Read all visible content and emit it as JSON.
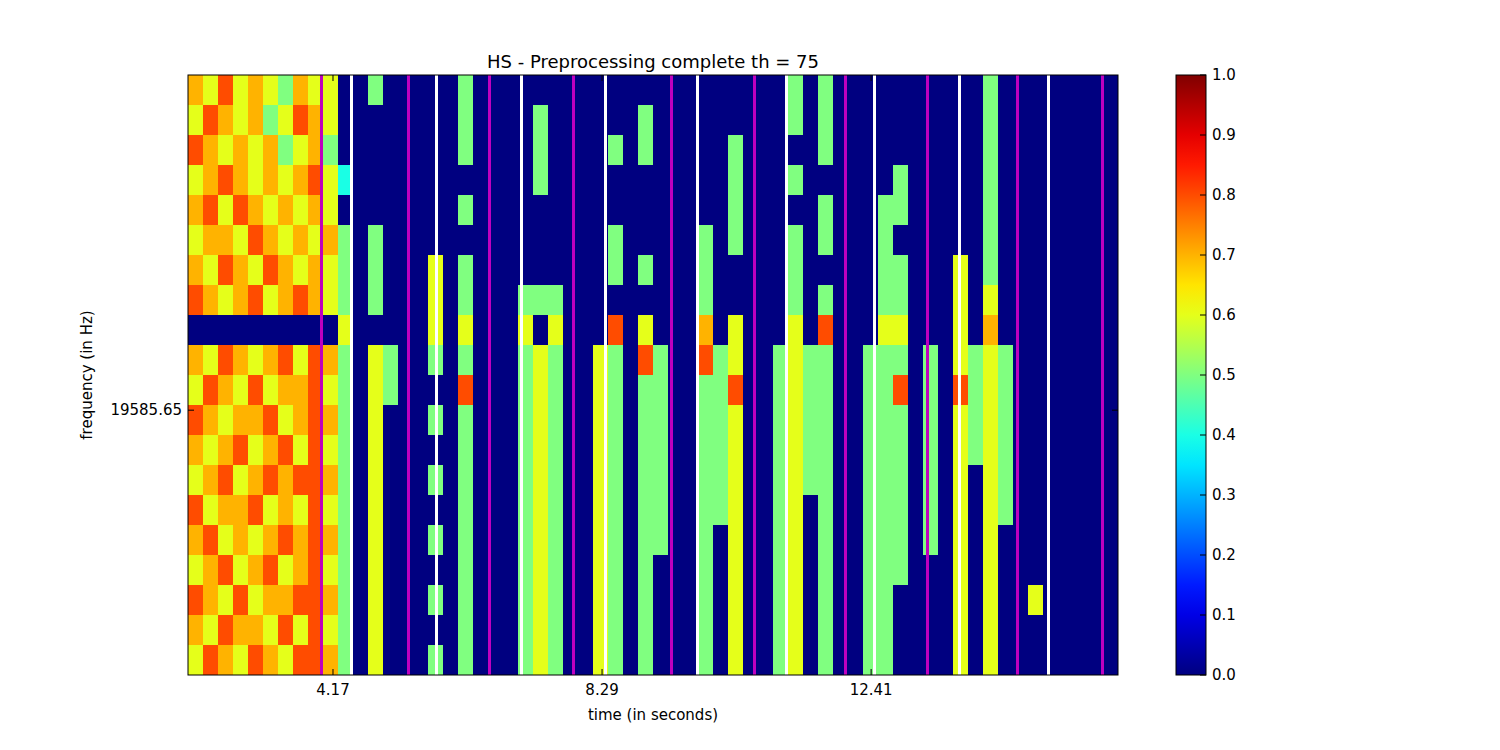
{
  "chart_data": {
    "type": "heatmap",
    "title": "HS - Preprocessing complete th = 75",
    "x_label": "time (in seconds)",
    "y_label": "frequency (in Hz)",
    "xlim": [
      1.95,
      16.19
    ],
    "xticks": [
      4.17,
      8.29,
      12.41
    ],
    "ylim": [
      18800,
      20580
    ],
    "yticks": [
      19585.65
    ],
    "colorbar": {
      "range": [
        0,
        1
      ],
      "ticks": [
        {
          "value": 0,
          "label": "0.0"
        },
        {
          "value": 0.1,
          "label": "0.1"
        },
        {
          "value": 0.2,
          "label": "0.2"
        },
        {
          "value": 0.3,
          "label": "0.3"
        },
        {
          "value": 0.4,
          "label": "0.4"
        },
        {
          "value": 0.5,
          "label": "0.5"
        },
        {
          "value": 0.6,
          "label": "0.6"
        },
        {
          "value": 0.7,
          "label": "0.7"
        },
        {
          "value": 0.8,
          "label": "0.8"
        },
        {
          "value": 0.9,
          "label": "0.9"
        },
        {
          "value": 1,
          "label": "1.0"
        }
      ]
    },
    "vlines": [
      {
        "color": "#ffffff",
        "x": [
          4.46,
          5.76,
          7.05,
          8.34,
          9.75,
          11.12,
          12.46,
          13.77,
          15.12
        ]
      },
      {
        "color": "#bf00bf",
        "x": [
          3.99,
          5.32,
          6.56,
          7.85,
          9.35,
          10.63,
          12.01,
          13.27,
          14.65,
          15.95
        ]
      }
    ],
    "cells": [
      [
        0.7,
        0.6,
        0.8,
        0.6,
        0.7,
        0.6,
        0.5,
        0.7,
        0.6,
        0.6,
        0,
        0,
        0.5,
        0,
        0,
        0,
        0,
        0,
        0.5,
        0,
        0,
        0,
        0,
        0,
        0,
        0,
        0,
        0,
        0,
        0,
        0,
        0,
        0,
        0,
        0,
        0,
        0,
        0,
        0,
        0,
        0.5,
        0,
        0.5,
        0,
        0,
        0,
        0,
        0,
        0,
        0,
        0,
        0,
        0,
        0.5,
        0,
        0,
        0,
        0,
        0,
        0,
        0,
        0
      ],
      [
        0.6,
        0.8,
        0.7,
        0.6,
        0.7,
        0.5,
        0.6,
        0.8,
        0.7,
        0.6,
        0,
        0,
        0,
        0,
        0,
        0,
        0,
        0,
        0.5,
        0,
        0,
        0,
        0,
        0.5,
        0,
        0,
        0,
        0,
        0,
        0,
        0.5,
        0,
        0,
        0,
        0,
        0,
        0,
        0,
        0,
        0,
        0.5,
        0,
        0.5,
        0,
        0,
        0,
        0,
        0,
        0,
        0,
        0,
        0,
        0,
        0.5,
        0,
        0,
        0,
        0,
        0,
        0,
        0,
        0
      ],
      [
        0.8,
        0.7,
        0.6,
        0.7,
        0.6,
        0.7,
        0.5,
        0.6,
        0.7,
        0.5,
        0,
        0,
        0,
        0,
        0,
        0,
        0,
        0,
        0.5,
        0,
        0,
        0,
        0,
        0.5,
        0,
        0,
        0,
        0,
        0.5,
        0,
        0.5,
        0,
        0,
        0,
        0,
        0,
        0.5,
        0,
        0,
        0,
        0,
        0,
        0.5,
        0,
        0,
        0,
        0,
        0,
        0,
        0,
        0,
        0,
        0,
        0.5,
        0,
        0,
        0,
        0,
        0,
        0,
        0,
        0
      ],
      [
        0.6,
        0.7,
        0.8,
        0.7,
        0.6,
        0.7,
        0.6,
        0.7,
        0.8,
        0.6,
        0.4,
        0,
        0,
        0,
        0,
        0,
        0,
        0,
        0,
        0,
        0,
        0,
        0,
        0.5,
        0,
        0,
        0,
        0,
        0,
        0,
        0,
        0,
        0,
        0,
        0,
        0,
        0.5,
        0,
        0,
        0,
        0.5,
        0,
        0,
        0,
        0,
        0,
        0,
        0.5,
        0,
        0,
        0,
        0,
        0,
        0.5,
        0,
        0,
        0,
        0,
        0,
        0,
        0,
        0
      ],
      [
        0.7,
        0.8,
        0.6,
        0.8,
        0.7,
        0.6,
        0.7,
        0.6,
        0.7,
        0.6,
        0,
        0,
        0,
        0,
        0,
        0,
        0,
        0,
        0.5,
        0,
        0,
        0,
        0,
        0,
        0,
        0,
        0,
        0,
        0,
        0,
        0,
        0,
        0,
        0,
        0,
        0,
        0.5,
        0,
        0,
        0,
        0,
        0,
        0.5,
        0,
        0,
        0,
        0.5,
        0.5,
        0,
        0,
        0,
        0,
        0,
        0.5,
        0,
        0,
        0,
        0,
        0,
        0,
        0,
        0
      ],
      [
        0.6,
        0.7,
        0.7,
        0.6,
        0.8,
        0.7,
        0.6,
        0.7,
        0.6,
        0.7,
        0.5,
        0,
        0.5,
        0,
        0,
        0,
        0,
        0,
        0,
        0,
        0,
        0,
        0,
        0,
        0,
        0,
        0,
        0,
        0.5,
        0,
        0,
        0,
        0,
        0,
        0.5,
        0,
        0.5,
        0,
        0,
        0,
        0.5,
        0,
        0.5,
        0,
        0,
        0,
        0.5,
        0,
        0,
        0,
        0,
        0,
        0,
        0.5,
        0,
        0,
        0,
        0,
        0,
        0,
        0,
        0
      ],
      [
        0.7,
        0.6,
        0.8,
        0.7,
        0.6,
        0.8,
        0.7,
        0.6,
        0.7,
        0.6,
        0.5,
        0,
        0.5,
        0,
        0,
        0,
        0.6,
        0,
        0.5,
        0,
        0,
        0,
        0,
        0,
        0,
        0,
        0,
        0,
        0.5,
        0,
        0.5,
        0,
        0,
        0,
        0.5,
        0,
        0,
        0,
        0,
        0,
        0.5,
        0,
        0,
        0,
        0,
        0,
        0.5,
        0.5,
        0,
        0,
        0,
        0.6,
        0,
        0.5,
        0,
        0,
        0,
        0,
        0,
        0,
        0,
        0
      ],
      [
        0.8,
        0.7,
        0.6,
        0.7,
        0.8,
        0.6,
        0.7,
        0.8,
        0.7,
        0.6,
        0.5,
        0,
        0.5,
        0,
        0,
        0,
        0.6,
        0,
        0.5,
        0,
        0,
        0,
        0.5,
        0.5,
        0.5,
        0,
        0,
        0,
        0,
        0,
        0,
        0,
        0,
        0,
        0.5,
        0,
        0,
        0,
        0,
        0,
        0.5,
        0,
        0.5,
        0,
        0,
        0,
        0.5,
        0.5,
        0,
        0,
        0,
        0.6,
        0,
        0.6,
        0,
        0,
        0,
        0,
        0,
        0,
        0,
        0
      ],
      [
        0,
        0,
        0,
        0,
        0,
        0,
        0,
        0,
        0,
        0,
        0.6,
        0,
        0,
        0,
        0,
        0,
        0.6,
        0,
        0.6,
        0,
        0,
        0,
        0.6,
        0,
        0.6,
        0,
        0,
        0,
        0.8,
        0,
        0.6,
        0,
        0,
        0,
        0.7,
        0,
        0.6,
        0,
        0,
        0,
        0.6,
        0,
        0.8,
        0,
        0,
        0,
        0.6,
        0.6,
        0,
        0,
        0,
        0.6,
        0,
        0.7,
        0,
        0,
        0,
        0,
        0,
        0,
        0,
        0
      ],
      [
        0.7,
        0.6,
        0.8,
        0.7,
        0.6,
        0.7,
        0.8,
        0.6,
        0.8,
        0.7,
        0.5,
        0,
        0.6,
        0.5,
        0,
        0,
        0.5,
        0,
        0.5,
        0,
        0,
        0,
        0.5,
        0.6,
        0.5,
        0,
        0,
        0.6,
        0.5,
        0,
        0.8,
        0.5,
        0,
        0,
        0.8,
        0.5,
        0.6,
        0,
        0,
        0.5,
        0.6,
        0.5,
        0.5,
        0,
        0,
        0.5,
        0.5,
        0.5,
        0,
        0.5,
        0,
        0.6,
        0.5,
        0.6,
        0.5,
        0,
        0,
        0,
        0,
        0,
        0,
        0
      ],
      [
        0.6,
        0.8,
        0.7,
        0.6,
        0.8,
        0.6,
        0.7,
        0.7,
        0.8,
        0.6,
        0.5,
        0,
        0.6,
        0.5,
        0,
        0,
        0,
        0,
        0.8,
        0,
        0,
        0,
        0.5,
        0.6,
        0.5,
        0,
        0,
        0.6,
        0.5,
        0,
        0.5,
        0.5,
        0,
        0,
        0.5,
        0.5,
        0.8,
        0,
        0,
        0.5,
        0.6,
        0.5,
        0.5,
        0,
        0,
        0.5,
        0.5,
        0.8,
        0,
        0.5,
        0,
        0.8,
        0.5,
        0.6,
        0.5,
        0,
        0,
        0,
        0,
        0,
        0,
        0
      ],
      [
        0.8,
        0.7,
        0.6,
        0.7,
        0.7,
        0.8,
        0.6,
        0.7,
        0.8,
        0.7,
        0.5,
        0,
        0.6,
        0,
        0,
        0,
        0.5,
        0,
        0.5,
        0,
        0,
        0,
        0.5,
        0.6,
        0.5,
        0,
        0,
        0.6,
        0.5,
        0,
        0.5,
        0.5,
        0,
        0,
        0.5,
        0.5,
        0.6,
        0,
        0,
        0.5,
        0.6,
        0.5,
        0.5,
        0,
        0,
        0.5,
        0.5,
        0.5,
        0,
        0.5,
        0,
        0.6,
        0.5,
        0.6,
        0.5,
        0,
        0,
        0,
        0,
        0,
        0,
        0
      ],
      [
        0.7,
        0.6,
        0.7,
        0.8,
        0.6,
        0.7,
        0.8,
        0.6,
        0.8,
        0.6,
        0.5,
        0,
        0.6,
        0,
        0,
        0,
        0,
        0,
        0.5,
        0,
        0,
        0,
        0.5,
        0.6,
        0.5,
        0,
        0,
        0.6,
        0.5,
        0,
        0.5,
        0.5,
        0,
        0,
        0.5,
        0.5,
        0.6,
        0,
        0,
        0.5,
        0.6,
        0.5,
        0.5,
        0,
        0,
        0.5,
        0.5,
        0.5,
        0,
        0.5,
        0,
        0.6,
        0.5,
        0.6,
        0.5,
        0,
        0,
        0,
        0,
        0,
        0,
        0
      ],
      [
        0.6,
        0.7,
        0.8,
        0.6,
        0.7,
        0.8,
        0.7,
        0.8,
        0.8,
        0.7,
        0.5,
        0,
        0.6,
        0,
        0,
        0,
        0.5,
        0,
        0.5,
        0,
        0,
        0,
        0.5,
        0.6,
        0.5,
        0,
        0,
        0.6,
        0.5,
        0,
        0.5,
        0.5,
        0,
        0,
        0.5,
        0.5,
        0.6,
        0,
        0,
        0.5,
        0.6,
        0.5,
        0.5,
        0,
        0,
        0.5,
        0.5,
        0.5,
        0,
        0.5,
        0,
        0.6,
        0,
        0.6,
        0.5,
        0,
        0,
        0,
        0,
        0,
        0,
        0
      ],
      [
        0.8,
        0.6,
        0.7,
        0.7,
        0.8,
        0.6,
        0.7,
        0.6,
        0.8,
        0.6,
        0.5,
        0,
        0.6,
        0,
        0,
        0,
        0,
        0,
        0.5,
        0,
        0,
        0,
        0.5,
        0.6,
        0.5,
        0,
        0,
        0.6,
        0.5,
        0,
        0.5,
        0.5,
        0,
        0,
        0.5,
        0.5,
        0.6,
        0,
        0,
        0.5,
        0.6,
        0,
        0.5,
        0,
        0,
        0.5,
        0.5,
        0.5,
        0,
        0.5,
        0,
        0.6,
        0,
        0.6,
        0.5,
        0,
        0,
        0,
        0,
        0,
        0,
        0
      ],
      [
        0.7,
        0.8,
        0.6,
        0.7,
        0.6,
        0.7,
        0.8,
        0.7,
        0.8,
        0.7,
        0.5,
        0,
        0.6,
        0,
        0,
        0,
        0.5,
        0,
        0.5,
        0,
        0,
        0,
        0.5,
        0.6,
        0.5,
        0,
        0,
        0.6,
        0.5,
        0,
        0.5,
        0.5,
        0,
        0,
        0.5,
        0,
        0.6,
        0,
        0,
        0.5,
        0.6,
        0,
        0.5,
        0,
        0,
        0.5,
        0.5,
        0.5,
        0,
        0.5,
        0,
        0.6,
        0,
        0.6,
        0,
        0,
        0,
        0,
        0,
        0,
        0,
        0
      ],
      [
        0.6,
        0.7,
        0.8,
        0.6,
        0.7,
        0.8,
        0.6,
        0.7,
        0.8,
        0.6,
        0.5,
        0,
        0.6,
        0,
        0,
        0,
        0,
        0,
        0.5,
        0,
        0,
        0,
        0.5,
        0.6,
        0.5,
        0,
        0,
        0.6,
        0.5,
        0,
        0.5,
        0,
        0,
        0,
        0.5,
        0,
        0.6,
        0,
        0,
        0.5,
        0.6,
        0,
        0.5,
        0,
        0,
        0.5,
        0.5,
        0.5,
        0,
        0,
        0,
        0.6,
        0,
        0.6,
        0,
        0,
        0,
        0,
        0,
        0,
        0,
        0
      ],
      [
        0.8,
        0.7,
        0.6,
        0.8,
        0.6,
        0.7,
        0.7,
        0.8,
        0.8,
        0.7,
        0.5,
        0,
        0.6,
        0,
        0,
        0,
        0.5,
        0,
        0.5,
        0,
        0,
        0,
        0.5,
        0.6,
        0.5,
        0,
        0,
        0.6,
        0.5,
        0,
        0.5,
        0,
        0,
        0,
        0.5,
        0,
        0.6,
        0,
        0,
        0.5,
        0.6,
        0,
        0.5,
        0,
        0,
        0.5,
        0.5,
        0,
        0,
        0,
        0,
        0.6,
        0,
        0.6,
        0,
        0,
        0.6,
        0,
        0,
        0,
        0,
        0
      ],
      [
        0.7,
        0.6,
        0.8,
        0.7,
        0.7,
        0.6,
        0.8,
        0.6,
        0.8,
        0.6,
        0.5,
        0,
        0.6,
        0,
        0,
        0,
        0,
        0,
        0.5,
        0,
        0,
        0,
        0.5,
        0.6,
        0.5,
        0,
        0,
        0.6,
        0.5,
        0,
        0.5,
        0,
        0,
        0,
        0.5,
        0,
        0.6,
        0,
        0,
        0.5,
        0.6,
        0,
        0.5,
        0,
        0,
        0.5,
        0.5,
        0,
        0,
        0,
        0,
        0.6,
        0,
        0.6,
        0,
        0,
        0,
        0,
        0,
        0,
        0,
        0
      ],
      [
        0.6,
        0.8,
        0.7,
        0.6,
        0.8,
        0.7,
        0.6,
        0.8,
        0.8,
        0.7,
        0.5,
        0,
        0.6,
        0,
        0,
        0,
        0.5,
        0,
        0.5,
        0,
        0,
        0,
        0.5,
        0.6,
        0.5,
        0,
        0,
        0.6,
        0.5,
        0,
        0.5,
        0,
        0,
        0,
        0.5,
        0,
        0.6,
        0,
        0,
        0.5,
        0.6,
        0,
        0.5,
        0,
        0,
        0.5,
        0.5,
        0,
        0,
        0,
        0,
        0.6,
        0,
        0.6,
        0,
        0,
        0,
        0,
        0,
        0,
        0,
        0
      ]
    ]
  }
}
